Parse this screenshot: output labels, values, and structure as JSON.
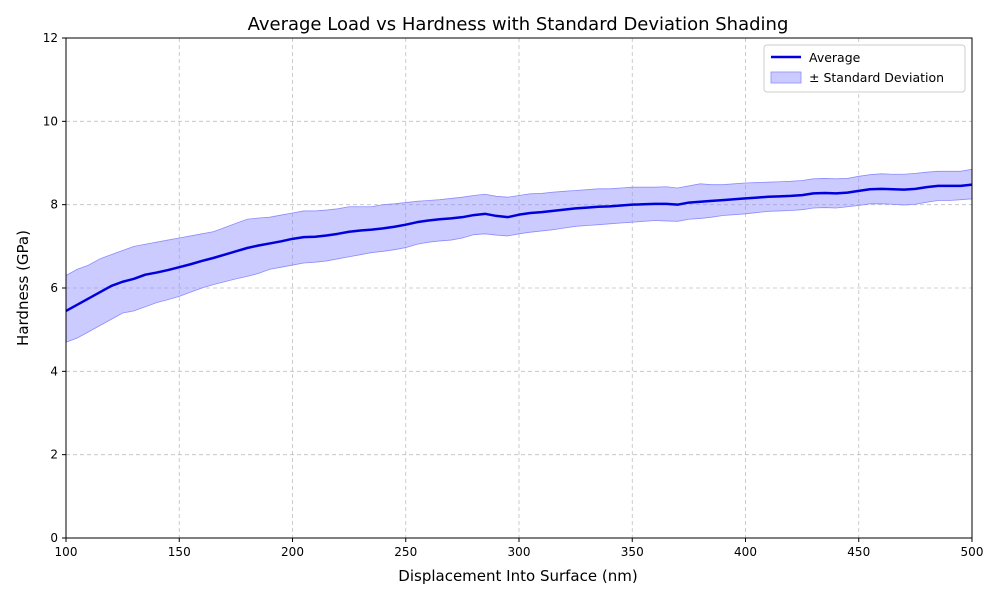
{
  "chart_data": {
    "type": "line",
    "title": "Average Load vs Hardness with Standard Deviation Shading",
    "xlabel": "Displacement Into Surface (nm)",
    "ylabel": "Hardness (GPa)",
    "xlim": [
      100,
      500
    ],
    "ylim": [
      0,
      12
    ],
    "xticks": [
      "100",
      "150",
      "200",
      "250",
      "300",
      "350",
      "400",
      "450",
      "500"
    ],
    "yticks": [
      "0",
      "2",
      "4",
      "6",
      "8",
      "10",
      "12"
    ],
    "grid": true,
    "legend_position": "top-right",
    "colors": {
      "line": "#0000dd",
      "band": "#8c8cff"
    },
    "x": [
      100,
      105,
      110,
      115,
      120,
      125,
      130,
      135,
      140,
      145,
      150,
      155,
      160,
      165,
      170,
      175,
      180,
      185,
      190,
      195,
      200,
      205,
      210,
      215,
      220,
      225,
      230,
      235,
      240,
      245,
      250,
      255,
      260,
      265,
      270,
      275,
      280,
      285,
      290,
      295,
      300,
      305,
      310,
      315,
      320,
      325,
      330,
      335,
      340,
      345,
      350,
      355,
      360,
      365,
      370,
      375,
      380,
      385,
      390,
      395,
      400,
      405,
      410,
      415,
      420,
      425,
      430,
      435,
      440,
      445,
      450,
      455,
      460,
      465,
      470,
      475,
      480,
      485,
      490,
      495,
      500
    ],
    "series": [
      {
        "name": "Average",
        "values": [
          5.45,
          5.6,
          5.75,
          5.9,
          6.05,
          6.15,
          6.22,
          6.32,
          6.37,
          6.43,
          6.5,
          6.57,
          6.65,
          6.72,
          6.8,
          6.88,
          6.96,
          7.02,
          7.07,
          7.12,
          7.18,
          7.22,
          7.23,
          7.26,
          7.3,
          7.35,
          7.38,
          7.4,
          7.43,
          7.47,
          7.52,
          7.58,
          7.62,
          7.65,
          7.67,
          7.7,
          7.75,
          7.78,
          7.73,
          7.7,
          7.76,
          7.8,
          7.82,
          7.85,
          7.88,
          7.91,
          7.93,
          7.95,
          7.96,
          7.98,
          8.0,
          8.01,
          8.02,
          8.02,
          8.0,
          8.05,
          8.07,
          8.09,
          8.11,
          8.13,
          8.15,
          8.17,
          8.19,
          8.2,
          8.21,
          8.23,
          8.27,
          8.28,
          8.27,
          8.29,
          8.33,
          8.37,
          8.38,
          8.37,
          8.36,
          8.38,
          8.42,
          8.45,
          8.45,
          8.45,
          8.48
        ]
      },
      {
        "name": "± Standard Deviation",
        "type": "band",
        "upper": [
          6.3,
          6.45,
          6.55,
          6.7,
          6.8,
          6.9,
          7.0,
          7.05,
          7.1,
          7.15,
          7.2,
          7.25,
          7.3,
          7.35,
          7.45,
          7.55,
          7.65,
          7.68,
          7.7,
          7.75,
          7.8,
          7.85,
          7.85,
          7.87,
          7.9,
          7.95,
          7.95,
          7.95,
          8.0,
          8.02,
          8.05,
          8.08,
          8.1,
          8.12,
          8.15,
          8.18,
          8.22,
          8.25,
          8.2,
          8.18,
          8.22,
          8.26,
          8.27,
          8.3,
          8.32,
          8.34,
          8.36,
          8.38,
          8.38,
          8.4,
          8.42,
          8.42,
          8.42,
          8.43,
          8.4,
          8.45,
          8.5,
          8.48,
          8.48,
          8.5,
          8.52,
          8.53,
          8.54,
          8.55,
          8.56,
          8.58,
          8.62,
          8.63,
          8.62,
          8.63,
          8.68,
          8.72,
          8.74,
          8.73,
          8.73,
          8.75,
          8.78,
          8.8,
          8.8,
          8.8,
          8.85
        ],
        "lower": [
          4.7,
          4.8,
          4.95,
          5.1,
          5.25,
          5.4,
          5.45,
          5.55,
          5.65,
          5.72,
          5.8,
          5.9,
          6.0,
          6.08,
          6.15,
          6.22,
          6.28,
          6.35,
          6.45,
          6.5,
          6.55,
          6.6,
          6.62,
          6.65,
          6.7,
          6.75,
          6.8,
          6.85,
          6.88,
          6.92,
          6.97,
          7.05,
          7.1,
          7.13,
          7.15,
          7.2,
          7.28,
          7.3,
          7.27,
          7.25,
          7.3,
          7.34,
          7.37,
          7.4,
          7.44,
          7.48,
          7.5,
          7.52,
          7.54,
          7.56,
          7.58,
          7.6,
          7.62,
          7.61,
          7.6,
          7.65,
          7.67,
          7.7,
          7.74,
          7.76,
          7.78,
          7.81,
          7.84,
          7.85,
          7.86,
          7.88,
          7.92,
          7.93,
          7.92,
          7.95,
          7.98,
          8.02,
          8.02,
          8.01,
          7.99,
          8.01,
          8.06,
          8.1,
          8.1,
          8.12,
          8.14
        ]
      }
    ]
  }
}
